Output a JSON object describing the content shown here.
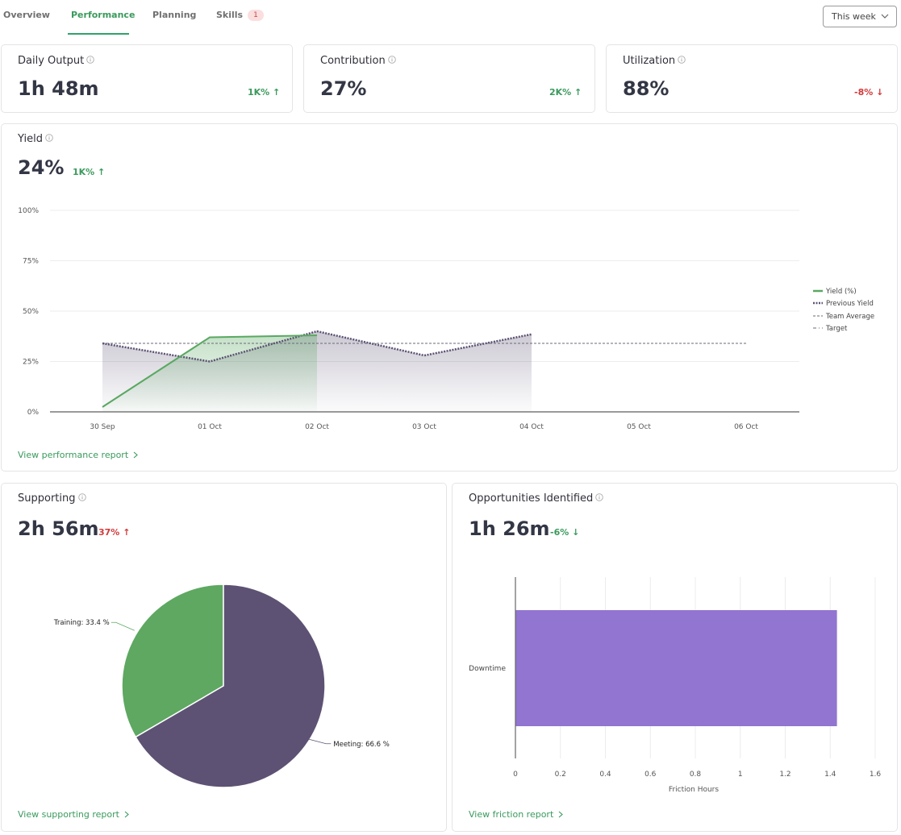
{
  "tabs": [
    {
      "label": "Overview",
      "active": false
    },
    {
      "label": "Performance",
      "active": true
    },
    {
      "label": "Planning",
      "active": false
    },
    {
      "label": "Skills",
      "active": false,
      "badge": "1"
    }
  ],
  "period_select": {
    "value": "This week",
    "icon": "chevron-down-icon"
  },
  "kpis": [
    {
      "title": "Daily Output",
      "value": "1h 48m",
      "delta": "1K%",
      "direction": "up",
      "sentiment": "good"
    },
    {
      "title": "Contribution",
      "value": "27%",
      "delta": "2K%",
      "direction": "up",
      "sentiment": "good"
    },
    {
      "title": "Utilization",
      "value": "88%",
      "delta": "-8%",
      "direction": "down",
      "sentiment": "bad"
    }
  ],
  "yield_card": {
    "title": "Yield",
    "value": "24%",
    "delta": "1K%",
    "direction": "up",
    "link": "View performance report"
  },
  "supporting_card": {
    "title": "Supporting",
    "value": "2h 56m",
    "delta": "37%",
    "direction": "up",
    "link": "View supporting report"
  },
  "opportunities_card": {
    "title": "Opportunities Identified",
    "value": "1h 26m",
    "delta": "-6%",
    "direction": "down",
    "link": "View friction report"
  },
  "colors": {
    "accent_green": "#3a9a5c",
    "negative_red": "#d23a3a",
    "yield_line": "#5aa862",
    "previous_yield": "#5c5272",
    "pie_training": "#5ea862",
    "pie_meeting": "#5d5274",
    "bar_downtime": "#9175d0"
  },
  "chart_data": [
    {
      "type": "line",
      "title": "Yield",
      "x": [
        "30 Sep",
        "01 Oct",
        "02 Oct",
        "03 Oct",
        "04 Oct",
        "05 Oct",
        "06 Oct"
      ],
      "ylabel": "",
      "xlabel": "",
      "ylim": [
        0,
        100
      ],
      "yticks": [
        "0%",
        "25%",
        "50%",
        "75%",
        "100%"
      ],
      "grid": true,
      "legend_position": "right",
      "series": [
        {
          "name": "Yield (%)",
          "style": "solid-area",
          "values": [
            2.4,
            37,
            38,
            null,
            null,
            null,
            null
          ]
        },
        {
          "name": "Previous Yield",
          "style": "dotted-area",
          "values": [
            34,
            25,
            40,
            28,
            38.5,
            null,
            null
          ]
        },
        {
          "name": "Team Average",
          "style": "dashed",
          "values": [
            34,
            34,
            34,
            34,
            34,
            34,
            34
          ]
        },
        {
          "name": "Target",
          "style": "dash-dot",
          "values": [
            null,
            null,
            null,
            null,
            null,
            null,
            null
          ]
        }
      ]
    },
    {
      "type": "pie",
      "title": "Supporting",
      "slices": [
        {
          "label": "Training",
          "value": 33.4,
          "display": "Training: 33.4 %"
        },
        {
          "label": "Meeting",
          "value": 66.6,
          "display": "Meeting: 66.6 %"
        }
      ]
    },
    {
      "type": "bar",
      "orientation": "horizontal",
      "title": "Opportunities Identified",
      "categories": [
        "Downtime"
      ],
      "values": [
        1.43
      ],
      "xlabel": "Friction Hours",
      "xlim": [
        0,
        1.6
      ],
      "xticks": [
        "0",
        "0.2",
        "0.4",
        "0.6",
        "0.8",
        "1",
        "1.2",
        "1.4",
        "1.6"
      ],
      "grid": true
    }
  ]
}
